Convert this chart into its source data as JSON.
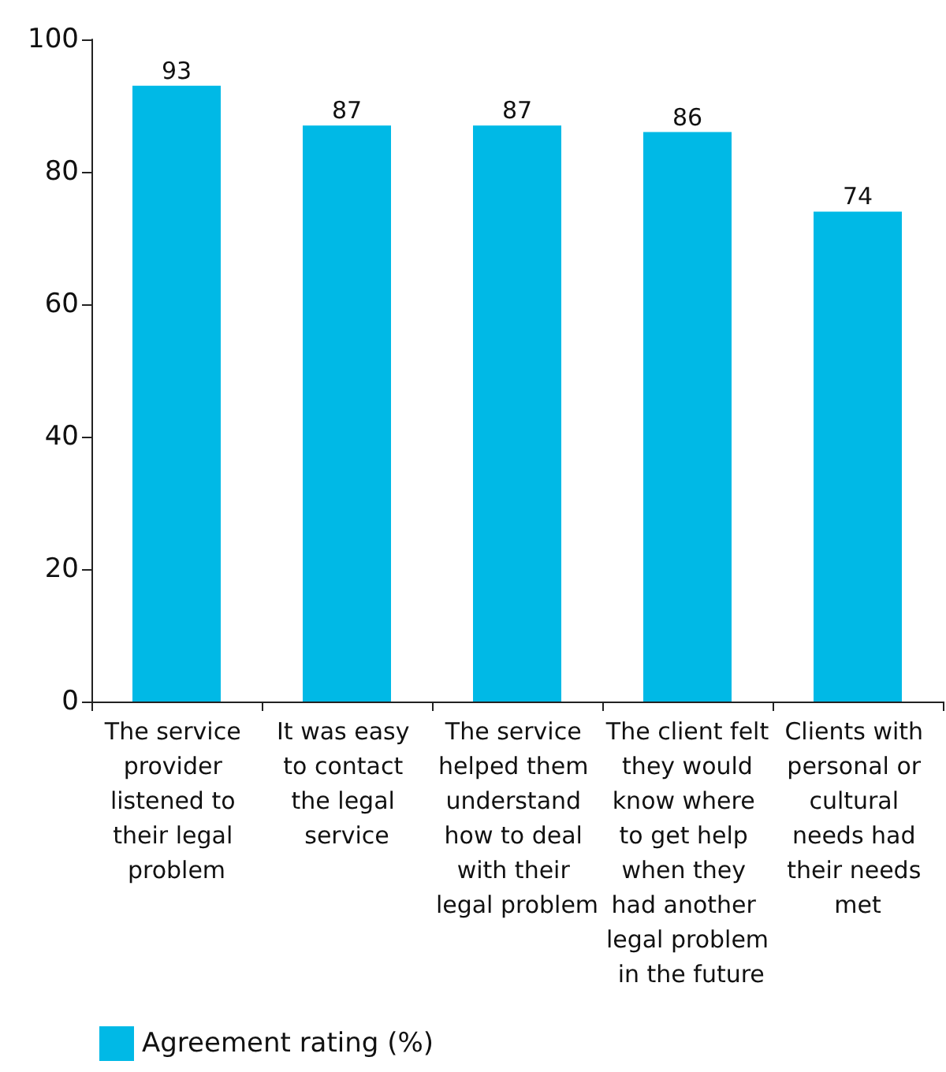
{
  "chart_data": {
    "type": "bar",
    "categories": [
      "The service provider listened to their legal problem",
      "It was easy to contact the legal service",
      "The service helped them understand how to deal with their legal problem",
      "The client felt they would know where to get help when they had another legal problem in the future",
      "Clients with personal or cultural needs had their needs met"
    ],
    "series": [
      {
        "name": "Agreement rating (%)",
        "color": "#00b9e6",
        "values": [
          93,
          87,
          87,
          86,
          74
        ]
      }
    ],
    "ylim": [
      0,
      100
    ],
    "yticks": [
      0,
      20,
      40,
      60,
      80,
      100
    ],
    "grid": false,
    "data_labels": true,
    "legend": "bottom left"
  }
}
